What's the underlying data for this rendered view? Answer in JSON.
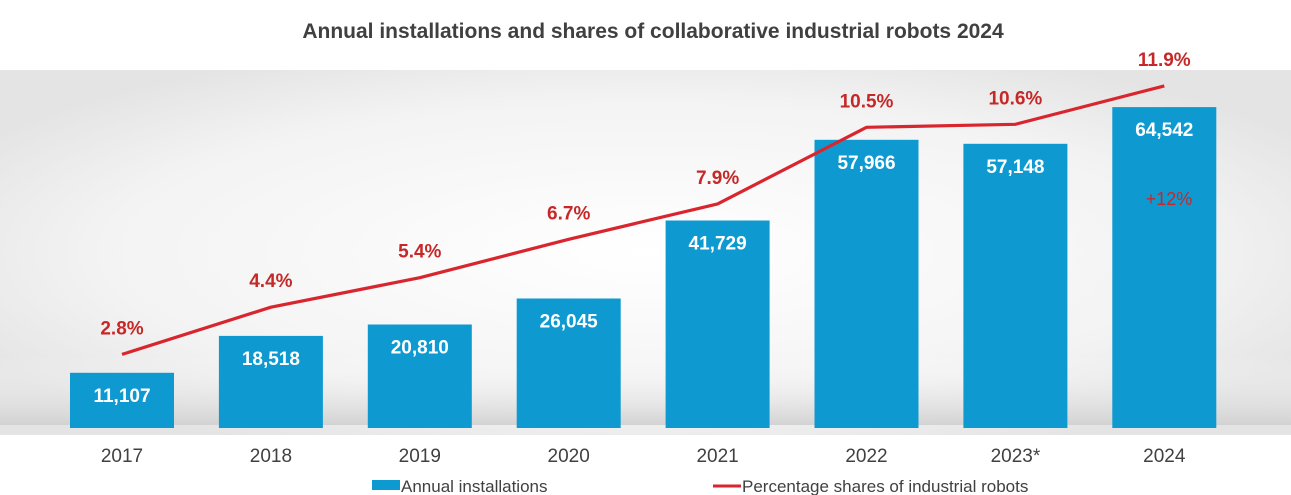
{
  "chart_data": {
    "type": "bar",
    "title": "Annual installations and shares of collaborative industrial robots 2024",
    "categories": [
      "2017",
      "2018",
      "2019",
      "2020",
      "2021",
      "2022",
      "2023*",
      "2024"
    ],
    "series": [
      {
        "name": "Annual installations",
        "type": "bar",
        "values": [
          11107,
          18518,
          20810,
          26045,
          41729,
          57966,
          57148,
          64542
        ],
        "labels": [
          "11,107",
          "18,518",
          "20,810",
          "26,045",
          "41,729",
          "57,966",
          "57,148",
          "64,542"
        ],
        "color": "#0e9ad1"
      },
      {
        "name": "Percentage shares of industrial robots",
        "type": "line",
        "values": [
          2.8,
          4.4,
          5.4,
          6.7,
          7.9,
          10.5,
          10.6,
          11.9
        ],
        "labels": [
          "2.8%",
          "4.4%",
          "5.4%",
          "6.7%",
          "7.9%",
          "10.5%",
          "10.6%",
          "11.9%"
        ],
        "color": "#d9262e"
      }
    ],
    "annotation": "+12%",
    "ylim": [
      0,
      72000
    ],
    "y2lim": [
      0,
      13
    ],
    "grid": false,
    "legend_position": "bottom"
  }
}
